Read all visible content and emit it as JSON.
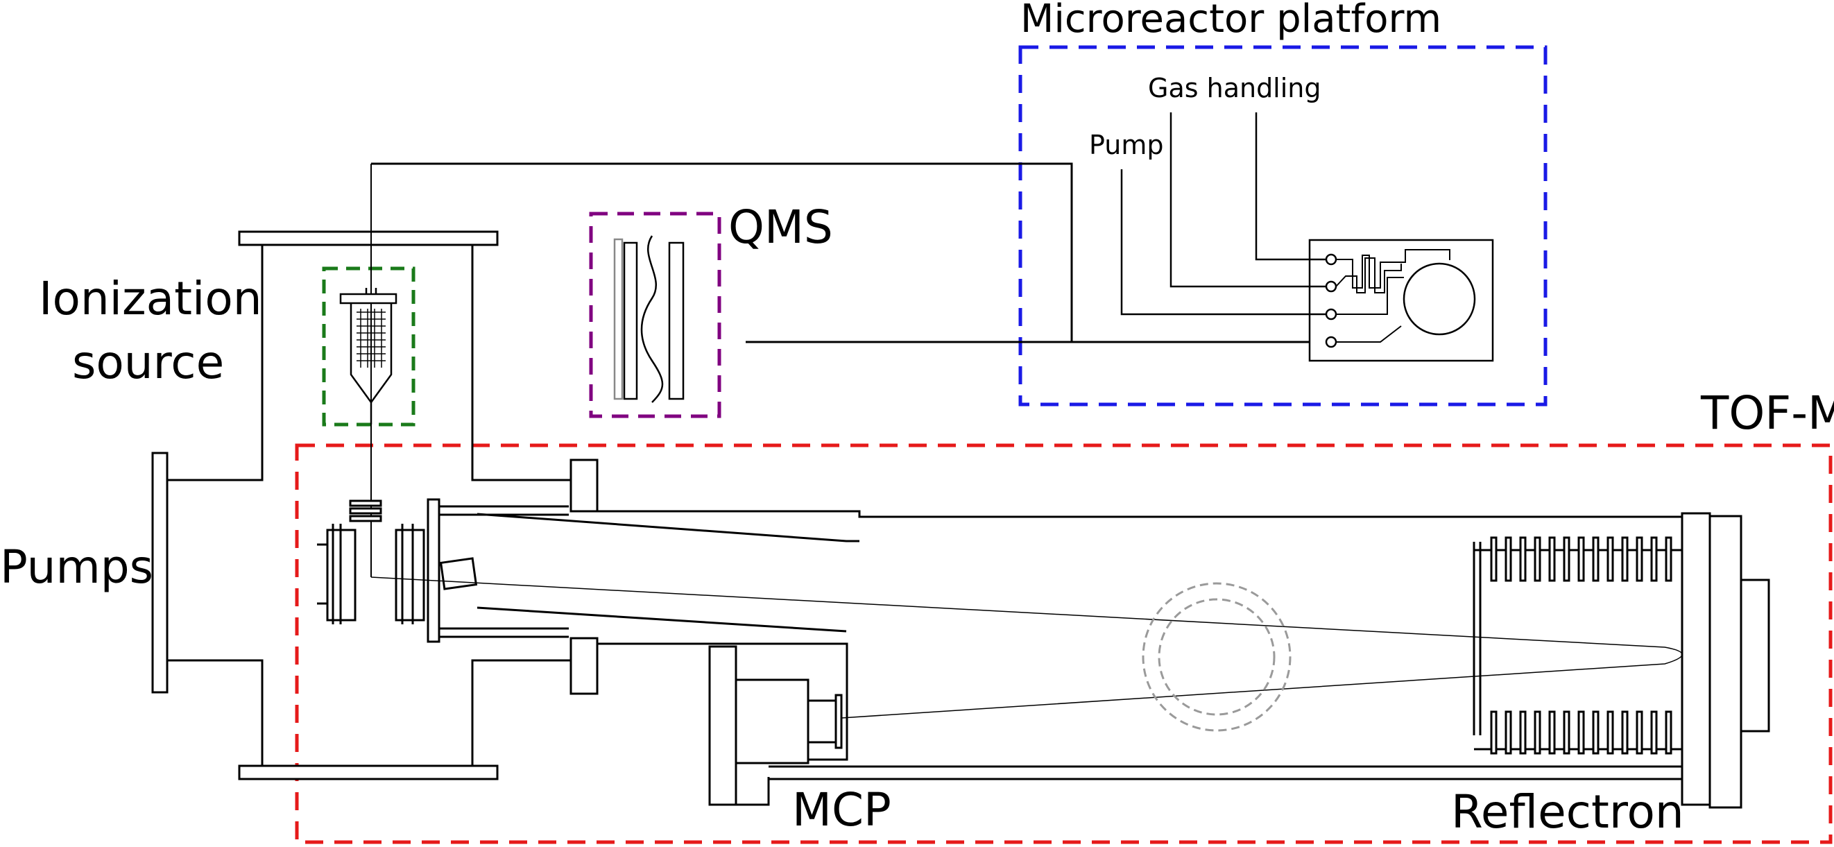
{
  "labels": {
    "microreactor": "Microreactor platform",
    "gas_handling": "Gas handling",
    "pump": "Pump",
    "qms": "QMS",
    "ionization_line1": "Ionization",
    "ionization_line2": "source",
    "pumps": "Pumps",
    "tof_ms": "TOF-MS",
    "mcp": "MCP",
    "reflectron": "Reflectron"
  },
  "colors": {
    "microreactor_box": "#1a1ae6",
    "qms_box": "#800080",
    "ionization_box": "#1a7a1a",
    "tof_box": "#e61a1a",
    "ion_path_circle": "#9a9a9a"
  }
}
